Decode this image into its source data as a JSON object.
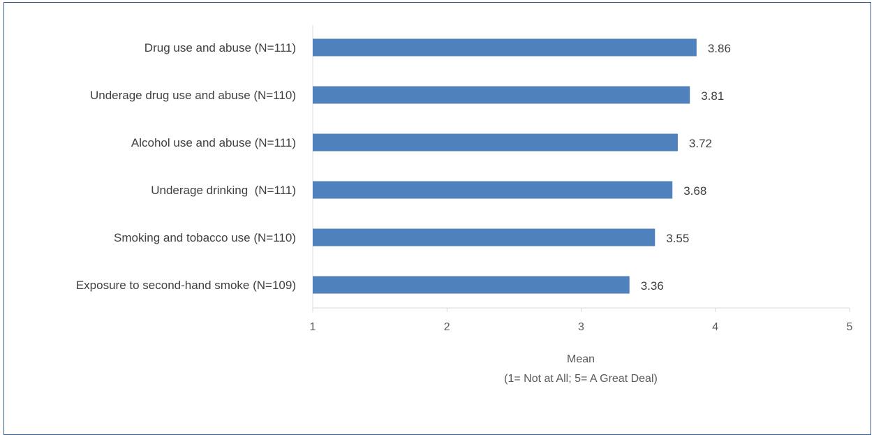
{
  "chart_data": {
    "type": "bar",
    "orientation": "horizontal",
    "categories": [
      "Drug use and abuse (N=111)",
      "Underage drug use and abuse (N=110)",
      "Alcohol use and abuse (N=111)",
      "Underage drinking  (N=111)",
      "Smoking and tobacco use (N=110)",
      "Exposure to second-hand smoke (N=109)"
    ],
    "values": [
      3.86,
      3.81,
      3.72,
      3.68,
      3.55,
      3.36
    ],
    "value_labels": [
      "3.86",
      "3.81",
      "3.72",
      "3.68",
      "3.55",
      "3.36"
    ],
    "xlabel_lines": [
      "Mean",
      "(1= Not at All; 5= A Great Deal)"
    ],
    "xlim": [
      1,
      5
    ],
    "xticks": [
      1,
      2,
      3,
      4,
      5
    ],
    "xtick_labels": [
      "1",
      "2",
      "3",
      "4",
      "5"
    ],
    "grid": false,
    "bar_color": "#4f81bd",
    "axis_color": "#d9d9d9",
    "frame_color": "#3a5c8a"
  }
}
